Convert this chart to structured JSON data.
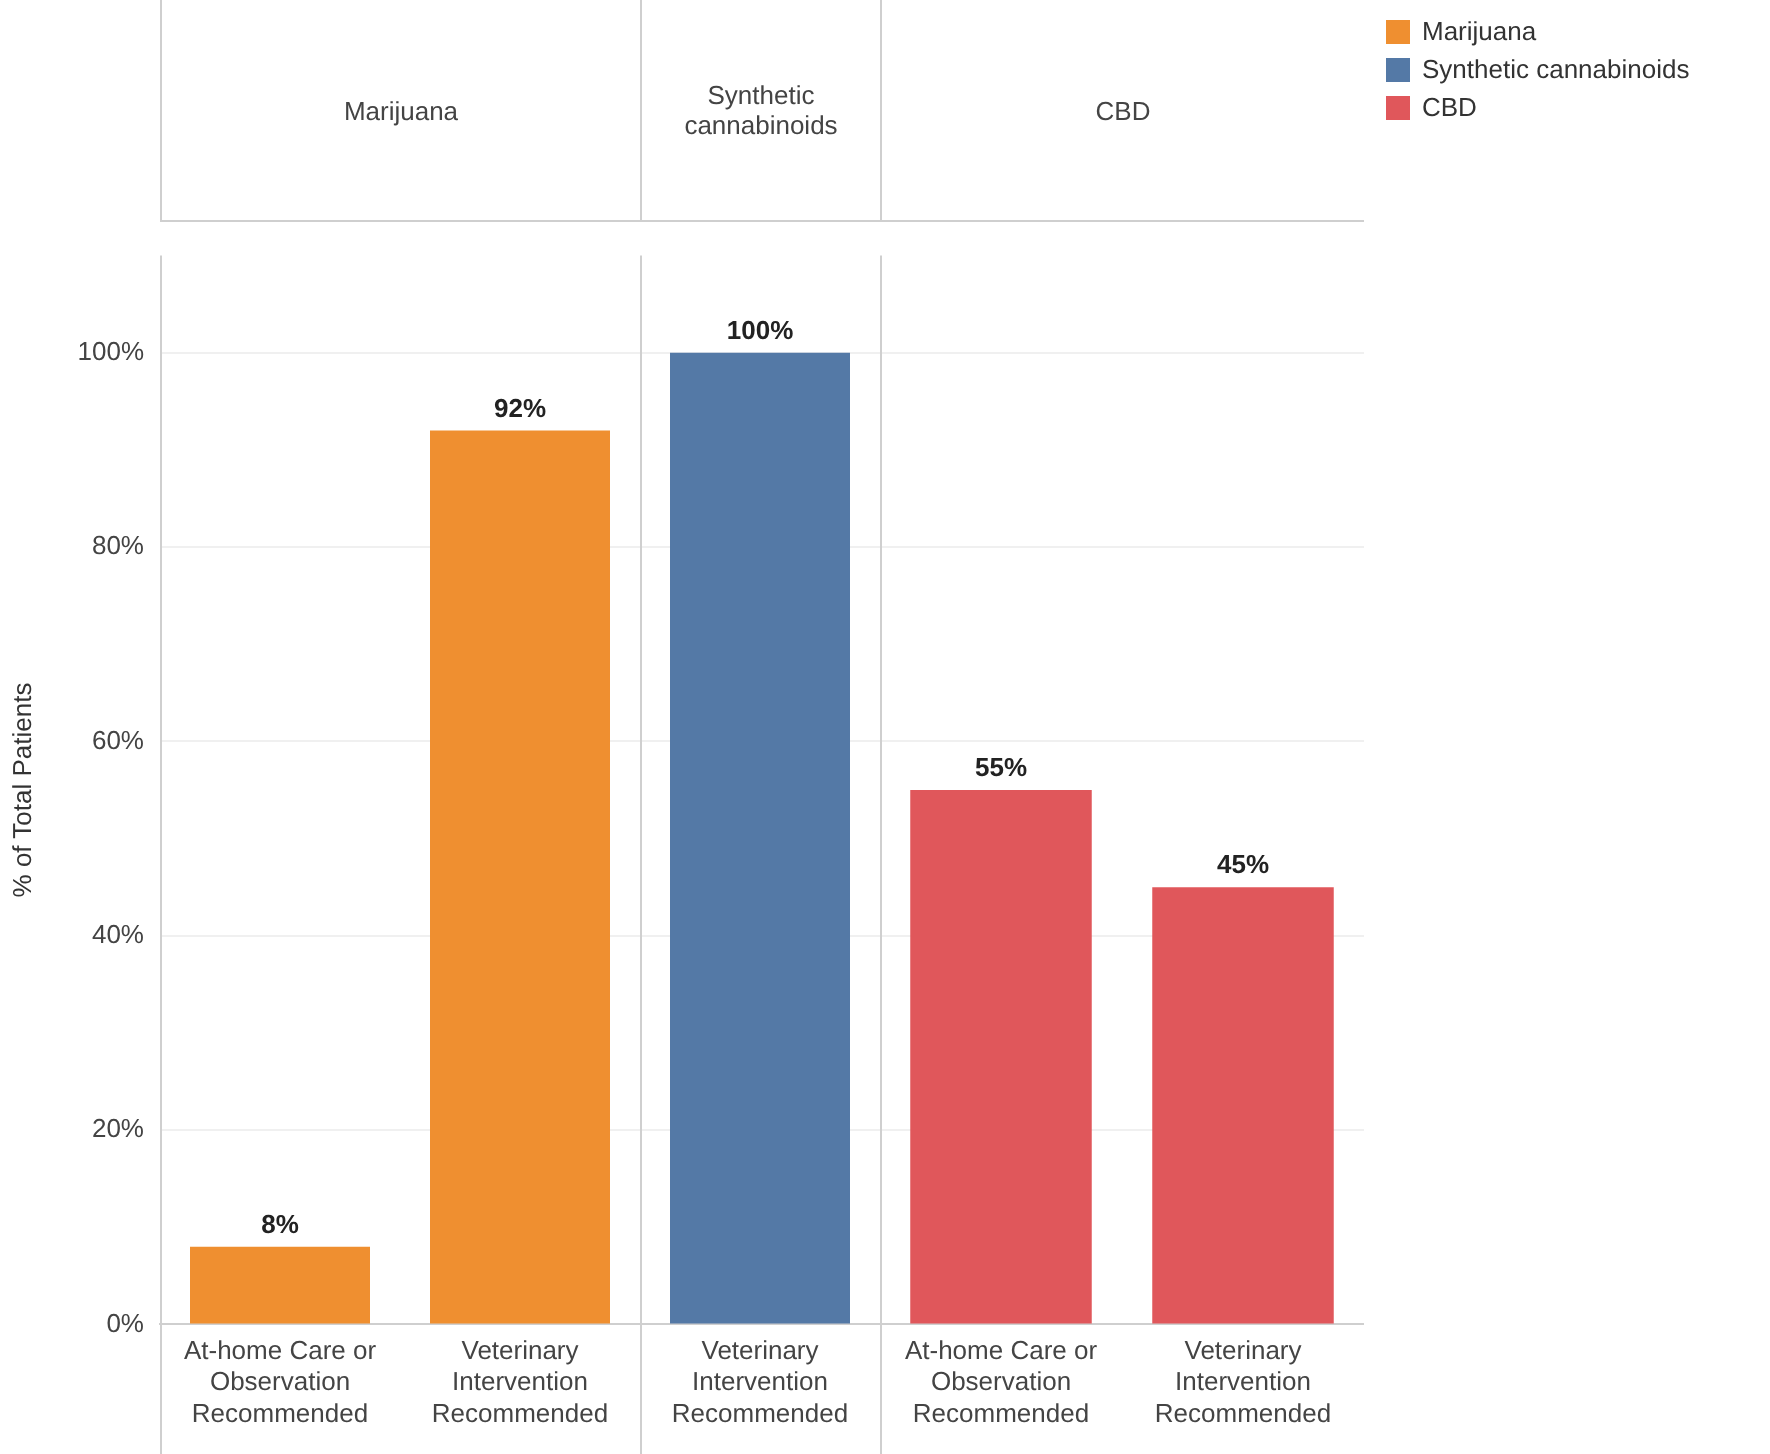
{
  "chart_data": [
    {
      "type": "bar",
      "title": "Marijuana",
      "ylabel": "% of Total Patients",
      "categories": [
        "At-home Care or Observation Recommended",
        "Veterinary Intervention Recommended"
      ],
      "series": [
        {
          "name": "Marijuana",
          "color": "#ef8f30",
          "values": [
            8,
            92
          ],
          "value_labels": [
            "8%",
            "92%"
          ]
        }
      ],
      "ylim": [
        0,
        110
      ],
      "yticks": [
        {
          "value": 0,
          "label": "0%"
        },
        {
          "value": 20,
          "label": "20%"
        },
        {
          "value": 40,
          "label": "40%"
        },
        {
          "value": 60,
          "label": "60%"
        },
        {
          "value": 80,
          "label": "80%"
        },
        {
          "value": 100,
          "label": "100%"
        }
      ],
      "grid": "y",
      "legend": "top right"
    },
    {
      "type": "bar",
      "title": "Synthetic cannabinoids",
      "categories": [
        "Veterinary Intervention Recommended"
      ],
      "series": [
        {
          "name": "Synthetic cannabinoids",
          "color": "#5479a6",
          "values": [
            100
          ],
          "value_labels": [
            "100%"
          ]
        }
      ],
      "ylim": [
        0,
        110
      ],
      "yticks": [
        0,
        20,
        40,
        60,
        80,
        100
      ],
      "grid": "y",
      "legend": "top right",
      "tick_labels": "x"
    },
    {
      "type": "bar",
      "title": "CBD",
      "categories": [
        "At-home Care or Observation Recommended",
        "Veterinary Intervention Recommended"
      ],
      "series": [
        {
          "name": "CBD",
          "color": "#e0575b",
          "values": [
            55,
            45
          ],
          "value_labels": [
            "55%",
            "45%"
          ]
        }
      ],
      "ylim": [
        0,
        110
      ],
      "yticks": [
        0,
        20,
        40,
        60,
        80,
        100
      ],
      "grid": "y",
      "legend": "top right",
      "tick_labels": "x"
    }
  ]
}
